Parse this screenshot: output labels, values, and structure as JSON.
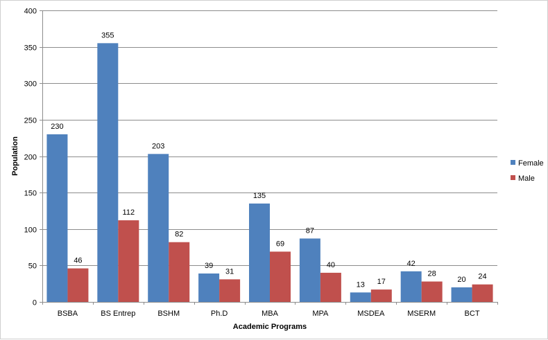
{
  "chart_data": {
    "type": "bar",
    "title": "",
    "xlabel": "Academic Programs",
    "ylabel": "Population",
    "ylim": [
      0,
      400
    ],
    "yticks": [
      0,
      50,
      100,
      150,
      200,
      250,
      300,
      350,
      400
    ],
    "grid": true,
    "legend_position": "right",
    "categories": [
      "BSBA",
      "BS Entrep",
      "BSHM",
      "Ph.D",
      "MBA",
      "MPA",
      "MSDEA",
      "MSERM",
      "BCT"
    ],
    "series": [
      {
        "name": "Female",
        "color": "#4F81BD",
        "values": [
          230,
          355,
          203,
          39,
          135,
          87,
          13,
          42,
          20
        ]
      },
      {
        "name": "Male",
        "color": "#C0504D",
        "values": [
          46,
          112,
          82,
          31,
          69,
          40,
          17,
          28,
          24
        ]
      }
    ]
  }
}
